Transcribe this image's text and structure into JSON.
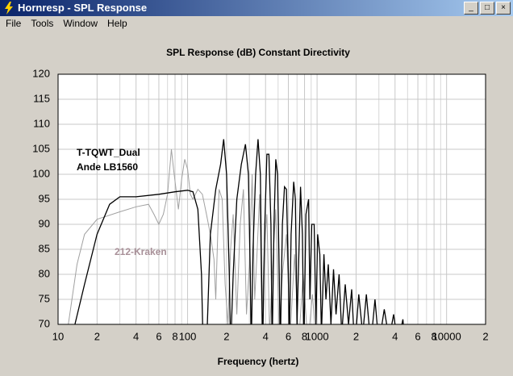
{
  "window": {
    "title": "Hornresp - SPL Response",
    "menu": [
      "File",
      "Tools",
      "Window",
      "Help"
    ]
  },
  "chart_data": {
    "type": "line",
    "title": "SPL Response (dB)   Constant Directivity",
    "x_label": "Frequency (hertz)",
    "log_x": true,
    "grid": true,
    "xlim": [
      10,
      20000
    ],
    "ylim": [
      70,
      120
    ],
    "yticks": [
      70,
      75,
      80,
      85,
      90,
      95,
      100,
      105,
      110,
      115,
      120
    ],
    "xticks": [
      10,
      {
        "value": 20,
        "label": "2"
      },
      {
        "value": 40,
        "label": "4"
      },
      {
        "value": 60,
        "label": "6"
      },
      {
        "value": 80,
        "label": "8"
      },
      100,
      {
        "value": 200,
        "label": "2"
      },
      {
        "value": 400,
        "label": "4"
      },
      {
        "value": 600,
        "label": "6"
      },
      {
        "value": 800,
        "label": "8"
      },
      1000,
      {
        "value": 2000,
        "label": "2"
      },
      {
        "value": 4000,
        "label": "4"
      },
      {
        "value": 6000,
        "label": "6"
      },
      {
        "value": 8000,
        "label": "8"
      },
      10000,
      {
        "value": 20000,
        "label": "2"
      }
    ],
    "xticks_minor": [
      30,
      50,
      70,
      90,
      300,
      500,
      700,
      900,
      3000,
      5000,
      7000,
      9000
    ],
    "annotations": [
      "Ande LB1560"
    ],
    "series": [
      {
        "name": "T-TQWT_Dual",
        "color": "#000000",
        "x": [
          13.5,
          16,
          20,
          25,
          30,
          40,
          60,
          80,
          100,
          110,
          120,
          128,
          132,
          140,
          150,
          165,
          180,
          190,
          200,
          210,
          215,
          225,
          240,
          260,
          280,
          295,
          305,
          310,
          320,
          335,
          350,
          365,
          375,
          380,
          395,
          410,
          425,
          440,
          450,
          465,
          480,
          495,
          510,
          520,
          540,
          560,
          580,
          600,
          610,
          630,
          660,
          680,
          700,
          720,
          745,
          770,
          790,
          820,
          860,
          880,
          910,
          950,
          980,
          1010,
          1050,
          1080,
          1130,
          1170,
          1220,
          1280,
          1340,
          1400,
          1480,
          1550,
          1650,
          1750,
          1850,
          1950,
          2100,
          2250,
          2400,
          2600,
          2800,
          3000,
          3300,
          3600,
          3900,
          4200,
          4600,
          5000
        ],
        "values": [
          70,
          78,
          88,
          94,
          95.5,
          95.5,
          96,
          96.5,
          96.8,
          96.5,
          93,
          80,
          65,
          65,
          88,
          97,
          102,
          107,
          100,
          80,
          65,
          80,
          95,
          102,
          106,
          100,
          80,
          65,
          85,
          100,
          107,
          100,
          75,
          65,
          90,
          104,
          104,
          90,
          65,
          90,
          103,
          100,
          80,
          65,
          90,
          97.5,
          97,
          80,
          65,
          88,
          98.5,
          95,
          70,
          82,
          97.5,
          88,
          65,
          92,
          95,
          75,
          90,
          90,
          70,
          88,
          84,
          68,
          84,
          75,
          82,
          70,
          81,
          72,
          80,
          68,
          78,
          70,
          77,
          65,
          76,
          68,
          76,
          66,
          75,
          66,
          73,
          67,
          72,
          66,
          71,
          60
        ]
      },
      {
        "name": "212-Kraken",
        "color": "#a0a0a0",
        "x": [
          10,
          12,
          14,
          16,
          20,
          30,
          40,
          50,
          55,
          60,
          65,
          70,
          75,
          78,
          85,
          90,
          95,
          100,
          105,
          110,
          120,
          130,
          140,
          150,
          160,
          165,
          175,
          185,
          195,
          205,
          215,
          225,
          240,
          255,
          270,
          285,
          300,
          315,
          330,
          345,
          360,
          375,
          390,
          410,
          430,
          450,
          480,
          510,
          540,
          580,
          620,
          670,
          720,
          780,
          850,
          920,
          1000
        ],
        "values": [
          60,
          70,
          82,
          88,
          91,
          92.5,
          93.5,
          94,
          92,
          90,
          92,
          96,
          105,
          101,
          93,
          99,
          103,
          101,
          96,
          95,
          97,
          96,
          92,
          88,
          83,
          75,
          97,
          95,
          78,
          70,
          85,
          92,
          72,
          90,
          97,
          72,
          82,
          100,
          75,
          85,
          96,
          70,
          85,
          92,
          68,
          80,
          93,
          68,
          80,
          88,
          68,
          84,
          66,
          80,
          66,
          76,
          64
        ]
      }
    ]
  }
}
